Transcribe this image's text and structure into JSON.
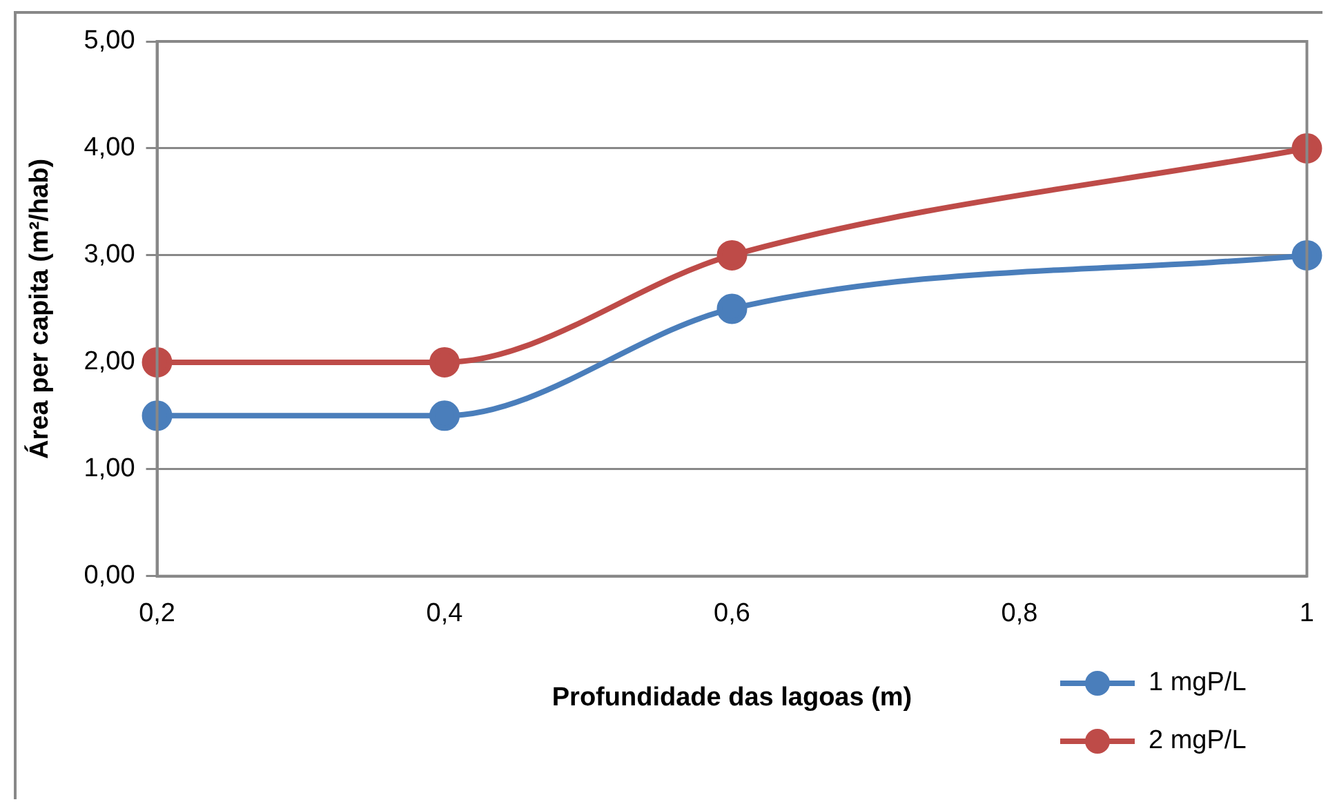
{
  "chart_data": {
    "type": "line",
    "xlabel": "Profundidade das lagoas (m)",
    "ylabel": "Área per capita (m²/hab)",
    "x": [
      0.2,
      0.4,
      0.6,
      1
    ],
    "series": [
      {
        "name": "1 mgP/L",
        "color": "#4a7ebb",
        "values": [
          1.5,
          1.5,
          2.5,
          3
        ]
      },
      {
        "name": "2 mgP/L",
        "color": "#be4b48",
        "values": [
          2,
          2,
          3,
          4
        ]
      }
    ],
    "xlim": [
      0.2,
      1
    ],
    "xticks": [
      {
        "value": 0.2,
        "label": "0,2"
      },
      {
        "value": 0.4,
        "label": "0,4"
      },
      {
        "value": 0.6,
        "label": "0,6"
      },
      {
        "value": 0.8,
        "label": "0,8"
      },
      {
        "value": 1,
        "label": "1"
      }
    ],
    "ylim": [
      0,
      5
    ],
    "yticks": [
      {
        "value": 0,
        "label": "0,00"
      },
      {
        "value": 1,
        "label": "1,00"
      },
      {
        "value": 2,
        "label": "2,00"
      },
      {
        "value": 3,
        "label": "3,00"
      },
      {
        "value": 4,
        "label": "4,00"
      },
      {
        "value": 5,
        "label": "5,00"
      }
    ],
    "grid": "y",
    "legend": "bottom right",
    "marker": "circle",
    "line_style": "solid"
  }
}
